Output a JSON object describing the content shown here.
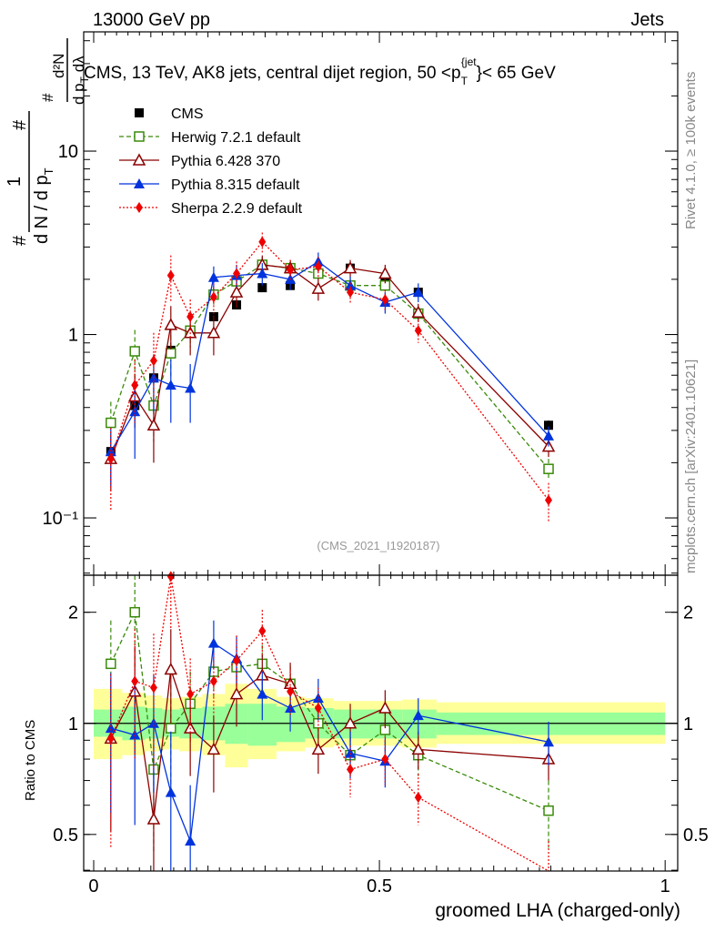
{
  "header": {
    "left": "13000 GeV pp",
    "right": "Jets"
  },
  "side_labels": {
    "rivet": "Rivet 4.1.0, ≥ 100k events",
    "mcplots": "mcplots.cern.ch [arXiv:2401.10621]"
  },
  "chart_data": [
    {
      "type": "line",
      "title": "CMS, 13 TeV, AK8 jets, central dijet region, 50 < p_T^{jet} < 65 GeV",
      "title_parts": {
        "main": "CMS, 13 TeV, AK8 jets, central dijet region, 50 <p",
        "sub": "T",
        "sup": "{jet",
        "tail": "}< 65 GeV"
      },
      "ylabel_parts": {
        "num1": "1",
        "den1": "d N / d p",
        "den1_sub": "T",
        "num2": "d²N",
        "den2": "d p",
        "den2_sub": "T",
        "den2_tail": " dλ",
        "hash": "#"
      },
      "xlabel": "",
      "yscale": "log",
      "xlim": [
        -0.0175,
        1.022
      ],
      "ylim": [
        0.0487,
        44.7
      ],
      "y_ticks": [
        {
          "v": 10,
          "label": "10"
        },
        {
          "v": 1,
          "label": "1"
        },
        {
          "v": 0.1,
          "label": "10⁻¹"
        }
      ],
      "watermark": "(CMS_2021_I1920187)",
      "legend_position": "top-left",
      "x": [
        0.03,
        0.072,
        0.105,
        0.135,
        0.169,
        0.21,
        0.25,
        0.295,
        0.344,
        0.393,
        0.449,
        0.51,
        0.568,
        0.796
      ],
      "series": [
        {
          "name": "CMS",
          "color": "#000000",
          "marker": "square-filled",
          "line": "none",
          "values": [
            0.23,
            0.41,
            0.58,
            0.82,
            1.05,
            1.25,
            1.45,
            1.8,
            1.85,
            2.15,
            2.3,
            1.95,
            1.7,
            0.32
          ],
          "err": [
            0.02,
            0.03,
            0.04,
            0.05,
            0.06,
            0.06,
            0.07,
            0.08,
            0.08,
            0.09,
            0.09,
            0.08,
            0.08,
            0.02
          ]
        },
        {
          "name": "Herwig 7.2.1 default",
          "color": "#3a8a0a",
          "marker": "square-open",
          "line": "dashed",
          "values": [
            0.33,
            0.81,
            0.41,
            0.79,
            1.05,
            1.65,
            1.95,
            2.4,
            2.3,
            2.15,
            1.85,
            1.85,
            1.3,
            0.185
          ],
          "err": [
            0.1,
            0.25,
            0.15,
            0.2,
            0.2,
            0.2,
            0.25,
            0.25,
            0.22,
            0.2,
            0.18,
            0.18,
            0.12,
            0.025
          ]
        },
        {
          "name": "Pythia 6.428 370",
          "color": "#8b0000",
          "marker": "triangle-open",
          "line": "solid",
          "values": [
            0.21,
            0.46,
            0.32,
            1.13,
            1.02,
            1.02,
            1.7,
            2.4,
            2.3,
            1.78,
            2.3,
            2.15,
            1.32,
            0.245
          ],
          "err": [
            0.07,
            0.15,
            0.12,
            0.3,
            0.25,
            0.25,
            0.3,
            0.3,
            0.25,
            0.25,
            0.25,
            0.25,
            0.15,
            0.03
          ]
        },
        {
          "name": "Pythia 8.315 default",
          "color": "#0033dd",
          "marker": "triangle-filled",
          "line": "solid",
          "values": [
            0.23,
            0.38,
            0.58,
            0.53,
            0.51,
            2.05,
            2.1,
            2.15,
            2.0,
            2.5,
            1.85,
            1.5,
            1.7,
            0.28
          ],
          "err": [
            0.08,
            0.17,
            0.2,
            0.2,
            0.18,
            0.3,
            0.3,
            0.3,
            0.25,
            0.3,
            0.22,
            0.2,
            0.2,
            0.035
          ]
        },
        {
          "name": "Sherpa 2.2.9 default",
          "color": "#ee0000",
          "marker": "diamond-filled",
          "line": "dotted",
          "values": [
            0.21,
            0.53,
            0.72,
            2.1,
            1.25,
            1.6,
            2.15,
            3.2,
            2.25,
            2.35,
            1.7,
            1.55,
            1.05,
            0.125
          ],
          "err": [
            0.1,
            0.2,
            0.3,
            0.6,
            0.3,
            0.3,
            0.35,
            0.4,
            0.3,
            0.3,
            0.22,
            0.2,
            0.15,
            0.03
          ]
        }
      ]
    },
    {
      "type": "line",
      "title": "",
      "ylabel": "Ratio to CMS",
      "xlabel": "groomed LHA (charged-only)",
      "yscale": "log",
      "xlim": [
        -0.0175,
        1.022
      ],
      "ylim": [
        0.398,
        2.52
      ],
      "x_ticks": [
        {
          "v": 0,
          "label": "0"
        },
        {
          "v": 0.5,
          "label": "0.5"
        },
        {
          "v": 1,
          "label": "1"
        }
      ],
      "y_ticks": [
        {
          "v": 2,
          "label": "2"
        },
        {
          "v": 1,
          "label": "1"
        },
        {
          "v": 0.5,
          "label": "0.5"
        }
      ],
      "bands": {
        "edges": [
          0.0,
          0.05,
          0.09,
          0.12,
          0.15,
          0.19,
          0.23,
          0.27,
          0.32,
          0.37,
          0.42,
          0.48,
          0.54,
          0.6,
          1.0
        ],
        "inner": [
          [
            0.92,
            1.09
          ],
          [
            0.9,
            1.11
          ],
          [
            0.91,
            1.1
          ],
          [
            0.92,
            1.09
          ],
          [
            0.91,
            1.1
          ],
          [
            0.9,
            1.11
          ],
          [
            0.88,
            1.13
          ],
          [
            0.87,
            1.13
          ],
          [
            0.89,
            1.11
          ],
          [
            0.91,
            1.1
          ],
          [
            0.91,
            1.09
          ],
          [
            0.91,
            1.09
          ],
          [
            0.91,
            1.09
          ],
          [
            0.93,
            1.07
          ]
        ],
        "outer": [
          [
            0.8,
            1.24
          ],
          [
            0.82,
            1.21
          ],
          [
            0.84,
            1.19
          ],
          [
            0.85,
            1.17
          ],
          [
            0.84,
            1.18
          ],
          [
            0.82,
            1.2
          ],
          [
            0.76,
            1.28
          ],
          [
            0.8,
            1.24
          ],
          [
            0.84,
            1.18
          ],
          [
            0.86,
            1.17
          ],
          [
            0.87,
            1.15
          ],
          [
            0.87,
            1.15
          ],
          [
            0.86,
            1.16
          ],
          [
            0.88,
            1.14
          ]
        ],
        "inner_color": "#99ff99",
        "outer_color": "#ffff99"
      },
      "x": [
        0.03,
        0.072,
        0.105,
        0.135,
        0.169,
        0.21,
        0.25,
        0.295,
        0.344,
        0.393,
        0.449,
        0.51,
        0.568,
        0.796
      ],
      "series": [
        {
          "name": "Herwig 7.2.1 default",
          "color": "#3a8a0a",
          "marker": "square-open",
          "line": "dashed",
          "values": [
            1.45,
            2.0,
            0.75,
            0.97,
            1.13,
            1.38,
            1.42,
            1.45,
            1.28,
            1.0,
            0.82,
            0.96,
            0.82,
            0.58
          ],
          "err": [
            0.45,
            0.6,
            0.3,
            0.3,
            0.25,
            0.2,
            0.2,
            0.18,
            0.15,
            0.12,
            0.1,
            0.12,
            0.1,
            0.12
          ]
        },
        {
          "name": "Pythia 6.428 370",
          "color": "#8b0000",
          "marker": "triangle-open",
          "line": "solid",
          "values": [
            0.91,
            1.22,
            0.55,
            1.4,
            0.97,
            0.85,
            1.2,
            1.35,
            1.28,
            0.85,
            1.0,
            1.1,
            0.85,
            0.8
          ],
          "err": [
            0.4,
            0.4,
            0.25,
            0.4,
            0.25,
            0.2,
            0.22,
            0.18,
            0.18,
            0.12,
            0.13,
            0.13,
            0.1,
            0.1
          ]
        },
        {
          "name": "Pythia 8.315 default",
          "color": "#0033dd",
          "marker": "triangle-filled",
          "line": "solid",
          "values": [
            0.97,
            0.93,
            1.0,
            0.65,
            0.48,
            1.65,
            1.5,
            1.2,
            1.1,
            1.17,
            0.83,
            0.79,
            1.05,
            0.89
          ],
          "err": [
            0.4,
            0.4,
            0.35,
            0.3,
            0.2,
            0.25,
            0.22,
            0.18,
            0.15,
            0.15,
            0.12,
            0.12,
            0.12,
            0.12
          ]
        },
        {
          "name": "Sherpa 2.2.9 default",
          "color": "#ee0000",
          "marker": "diamond-filled",
          "line": "dotted",
          "values": [
            0.91,
            1.3,
            1.25,
            2.5,
            1.2,
            1.3,
            1.48,
            1.78,
            1.22,
            1.1,
            0.75,
            0.8,
            0.63,
            0.38
          ],
          "err": [
            0.45,
            0.5,
            0.5,
            0.7,
            0.3,
            0.25,
            0.25,
            0.25,
            0.18,
            0.15,
            0.12,
            0.12,
            0.1,
            0.1
          ]
        }
      ]
    }
  ]
}
